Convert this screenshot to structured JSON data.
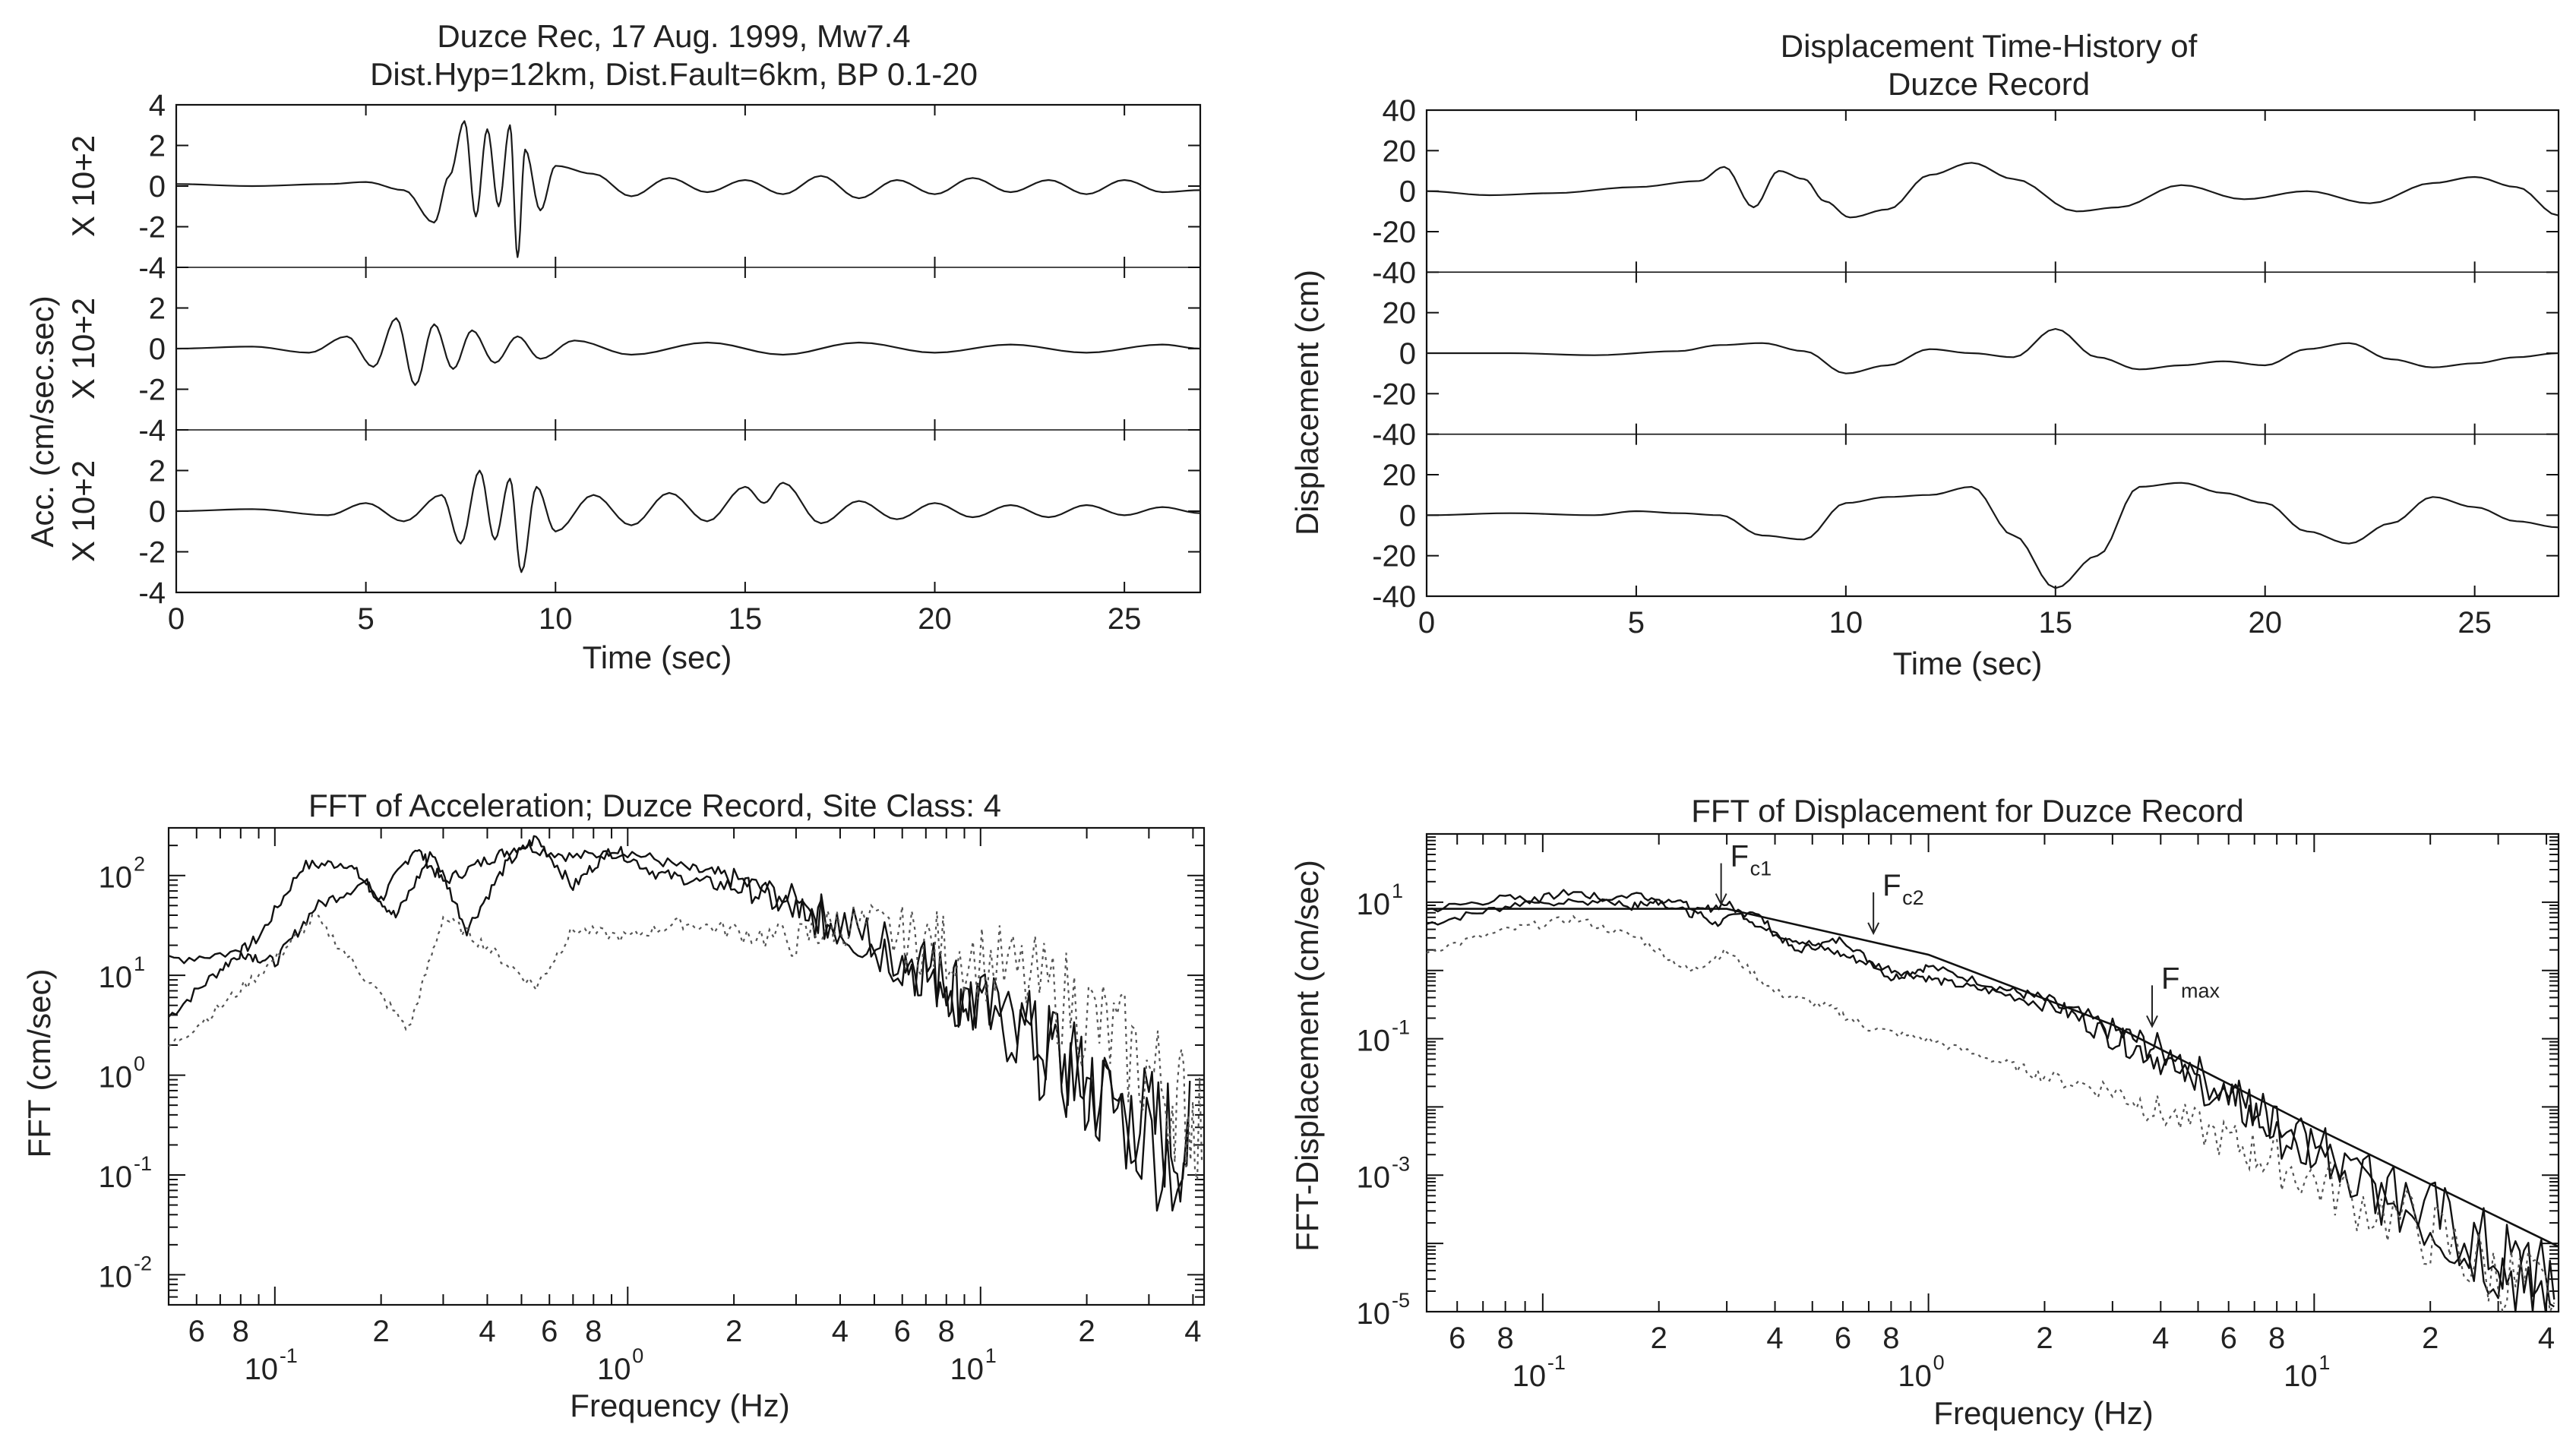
{
  "chart_data": [
    {
      "id": "acc",
      "type": "line",
      "title": [
        "Duzce Rec, 17 Aug. 1999, Mw7.4",
        "Dist.Hyp=12km, Dist.Fault=6km, BP 0.1-20"
      ],
      "xlabel": "Time (sec)",
      "ylabel": "Acc. (cm/sec.sec)",
      "channel_labels": [
        "X 10+2",
        "X 10+2",
        "X 10+2"
      ],
      "xlim": [
        0,
        27
      ],
      "xticks": [
        "0",
        "5",
        "10",
        "15",
        "20",
        "25"
      ],
      "xtick_values": [
        0,
        5,
        10,
        15,
        20,
        25
      ],
      "ylim": [
        -4,
        4
      ],
      "yticks": [
        "4",
        "2",
        "0",
        "-2",
        "-4"
      ],
      "channels": [
        {
          "label": "X 10+2",
          "x": [
            0,
            2,
            4,
            5,
            6,
            6.8,
            7.2,
            7.6,
            7.9,
            8.2,
            8.5,
            8.8,
            9.0,
            9.2,
            9.6,
            10,
            11,
            12,
            13,
            14,
            15,
            16,
            17,
            18,
            19,
            20,
            21,
            22,
            23,
            24,
            25,
            26,
            27
          ],
          "y": [
            0.1,
            0.0,
            0.1,
            0.2,
            -0.2,
            -1.8,
            0.5,
            3.2,
            -1.5,
            2.8,
            -1.0,
            3.0,
            -3.5,
            1.8,
            -1.2,
            1.0,
            0.6,
            -0.5,
            0.4,
            -0.3,
            0.3,
            -0.4,
            0.5,
            -0.6,
            0.3,
            -0.4,
            0.4,
            -0.3,
            0.3,
            -0.4,
            0.3,
            -0.3,
            -0.2
          ]
        },
        {
          "label": "X 10+2",
          "x": [
            0,
            2,
            3.5,
            4.5,
            5.2,
            5.8,
            6.3,
            6.8,
            7.3,
            7.8,
            8.4,
            9.0,
            9.6,
            10.5,
            12,
            14,
            16,
            18,
            20,
            22,
            24,
            26,
            27
          ],
          "y": [
            0.0,
            0.1,
            -0.2,
            0.6,
            -0.9,
            1.5,
            -1.8,
            1.2,
            -1.0,
            0.9,
            -0.7,
            0.6,
            -0.5,
            0.4,
            -0.3,
            0.3,
            -0.3,
            0.3,
            -0.2,
            0.2,
            -0.2,
            0.2,
            0.0
          ]
        },
        {
          "label": "X 10+2",
          "x": [
            0,
            2,
            4,
            5,
            6,
            7,
            7.5,
            8.0,
            8.4,
            8.8,
            9.1,
            9.5,
            10,
            11,
            12,
            13,
            14,
            15,
            15.5,
            16,
            17,
            18,
            19,
            20,
            21,
            22,
            23,
            24,
            25,
            26,
            27
          ],
          "y": [
            0.0,
            0.1,
            -0.2,
            0.4,
            -0.5,
            0.8,
            -1.6,
            2.0,
            -1.4,
            1.6,
            -3.0,
            1.2,
            -1.0,
            0.8,
            -0.7,
            0.9,
            -0.5,
            1.2,
            0.4,
            1.4,
            -0.6,
            0.5,
            -0.4,
            0.4,
            -0.3,
            0.3,
            -0.3,
            0.3,
            -0.2,
            0.2,
            -0.1
          ]
        }
      ]
    },
    {
      "id": "disp",
      "type": "line",
      "title": [
        "Displacement Time-History of",
        "Duzce Record"
      ],
      "xlabel": "Time (sec)",
      "ylabel": "Displacement (cm)",
      "xlim": [
        0,
        27
      ],
      "xticks": [
        "0",
        "5",
        "10",
        "15",
        "20",
        "25"
      ],
      "xtick_values": [
        0,
        5,
        10,
        15,
        20,
        25
      ],
      "ylim": [
        -40,
        40
      ],
      "yticks": [
        "40",
        "20",
        "0",
        "-20",
        "-40"
      ],
      "channels": [
        {
          "x": [
            0,
            1.5,
            3,
            5,
            6.5,
            7.1,
            7.8,
            8.4,
            9.0,
            9.5,
            10.1,
            11,
            12,
            13,
            14,
            15.5,
            16.5,
            18,
            19.5,
            21,
            22.5,
            24,
            25,
            26,
            27
          ],
          "y": [
            0,
            -2,
            -1,
            2,
            5,
            12,
            -8,
            10,
            6,
            -5,
            -13,
            -9,
            8,
            14,
            6,
            -10,
            -8,
            3,
            -4,
            0,
            -6,
            4,
            7,
            2,
            -12
          ]
        },
        {
          "x": [
            0,
            2,
            4,
            6,
            7,
            8,
            9,
            10,
            11,
            12,
            13,
            14,
            15,
            16,
            17,
            18,
            19,
            20,
            21,
            22,
            23,
            24,
            25,
            26,
            27
          ],
          "y": [
            0,
            0,
            -1,
            1,
            4,
            5,
            1,
            -10,
            -6,
            2,
            0,
            -2,
            12,
            -2,
            -8,
            -6,
            -4,
            -6,
            2,
            5,
            -3,
            -7,
            -5,
            -2,
            0
          ]
        },
        {
          "x": [
            0,
            2,
            4,
            5,
            6,
            7,
            8,
            9,
            10,
            11,
            12,
            13,
            14,
            15,
            16,
            17,
            18,
            19,
            20,
            21,
            22,
            23,
            24,
            25,
            26,
            27
          ],
          "y": [
            0,
            1,
            0,
            2,
            1,
            0,
            -10,
            -12,
            6,
            9,
            10,
            14,
            -10,
            -36,
            -20,
            14,
            16,
            11,
            6,
            -8,
            -14,
            -4,
            9,
            4,
            -3,
            -6
          ]
        }
      ]
    },
    {
      "id": "fft-acc",
      "type": "line",
      "scale": "log-log",
      "title": "FFT of Acceleration; Duzce Record, Site Class: 4",
      "xlabel": "Frequency (Hz)",
      "ylabel": "FFT (cm/sec)",
      "xlim": [
        0.05,
        43
      ],
      "ylim": [
        0.005,
        300
      ],
      "xtick_minor_labels": [
        {
          "v": 0.06,
          "t": "6"
        },
        {
          "v": 0.08,
          "t": "8"
        },
        {
          "v": 0.2,
          "t": "2"
        },
        {
          "v": 0.4,
          "t": "4"
        },
        {
          "v": 0.6,
          "t": "6"
        },
        {
          "v": 0.8,
          "t": "8"
        },
        {
          "v": 2,
          "t": "2"
        },
        {
          "v": 4,
          "t": "4"
        },
        {
          "v": 6,
          "t": "6"
        },
        {
          "v": 8,
          "t": "8"
        },
        {
          "v": 20,
          "t": "2"
        },
        {
          "v": 40,
          "t": "4"
        }
      ],
      "xtick_decades": [
        {
          "v": 0.1,
          "base": "10",
          "exp": "-1"
        },
        {
          "v": 1,
          "base": "10",
          "exp": "0"
        },
        {
          "v": 10,
          "base": "10",
          "exp": "1"
        }
      ],
      "ytick_decades": [
        {
          "v": 100,
          "base": "10",
          "exp": "2"
        },
        {
          "v": 10,
          "base": "10",
          "exp": "1"
        },
        {
          "v": 1,
          "base": "10",
          "exp": "0"
        },
        {
          "v": 0.1,
          "base": "10",
          "exp": "-1"
        },
        {
          "v": 0.01,
          "base": "10",
          "exp": "-2"
        }
      ],
      "series": [
        {
          "style": "solid",
          "x": [
            0.05,
            0.07,
            0.09,
            0.12,
            0.16,
            0.2,
            0.25,
            0.3,
            0.4,
            0.5,
            0.7,
            1.0,
            1.5,
            2,
            3,
            4,
            6,
            8,
            10,
            15,
            20,
            30,
            40
          ],
          "y": [
            4,
            12,
            25,
            130,
            140,
            60,
            200,
            90,
            150,
            210,
            160,
            180,
            120,
            100,
            60,
            40,
            20,
            12,
            6,
            3,
            1.2,
            0.5,
            0.3
          ]
        },
        {
          "style": "solid",
          "x": [
            0.05,
            0.08,
            0.1,
            0.13,
            0.18,
            0.22,
            0.28,
            0.35,
            0.45,
            0.55,
            0.7,
            0.9,
            1.2,
            1.6,
            2.2,
            3,
            4,
            6,
            8,
            12,
            18,
            25,
            40
          ],
          "y": [
            15,
            18,
            14,
            50,
            90,
            40,
            180,
            30,
            130,
            250,
            80,
            200,
            110,
            90,
            80,
            50,
            35,
            18,
            10,
            4,
            1.5,
            0.6,
            0.15
          ]
        },
        {
          "style": "dotted",
          "x": [
            0.05,
            0.07,
            0.1,
            0.13,
            0.18,
            0.24,
            0.3,
            0.4,
            0.55,
            0.7,
            1.0,
            1.4,
            2,
            3,
            4,
            6,
            8,
            12,
            18,
            25,
            35,
            43
          ],
          "y": [
            2,
            5,
            15,
            40,
            10,
            3,
            40,
            20,
            8,
            30,
            25,
            35,
            30,
            25,
            40,
            30,
            25,
            15,
            8,
            3,
            1,
            0.5
          ]
        }
      ]
    },
    {
      "id": "fft-disp",
      "type": "line",
      "scale": "log-log",
      "title": "FFT of Displacement for Duzce Record",
      "xlabel": "Frequency (Hz)",
      "ylabel": "FFT-Displacement (cm/sec)",
      "xlim": [
        0.05,
        43
      ],
      "ylim": [
        1e-05,
        100
      ],
      "xtick_minor_labels": [
        {
          "v": 0.06,
          "t": "6"
        },
        {
          "v": 0.08,
          "t": "8"
        },
        {
          "v": 0.2,
          "t": "2"
        },
        {
          "v": 0.4,
          "t": "4"
        },
        {
          "v": 0.6,
          "t": "6"
        },
        {
          "v": 0.8,
          "t": "8"
        },
        {
          "v": 2,
          "t": "2"
        },
        {
          "v": 4,
          "t": "4"
        },
        {
          "v": 6,
          "t": "6"
        },
        {
          "v": 8,
          "t": "8"
        },
        {
          "v": 20,
          "t": "2"
        },
        {
          "v": 40,
          "t": "4"
        }
      ],
      "xtick_decades": [
        {
          "v": 0.1,
          "base": "10",
          "exp": "-1"
        },
        {
          "v": 1,
          "base": "10",
          "exp": "0"
        },
        {
          "v": 10,
          "base": "10",
          "exp": "1"
        }
      ],
      "ytick_decades": [
        {
          "v": 10,
          "base": "10",
          "exp": "1"
        },
        {
          "v": 0.1,
          "base": "10",
          "exp": "-1"
        },
        {
          "v": 0.001,
          "base": "10",
          "exp": "-3"
        },
        {
          "v": 1e-05,
          "base": "10",
          "exp": "-5"
        }
      ],
      "annotations": [
        {
          "label": "F",
          "sub": "c1",
          "x": 0.29,
          "y": 8
        },
        {
          "label": "F",
          "sub": "c2",
          "x": 0.72,
          "y": 3
        },
        {
          "label": "F",
          "sub": "max",
          "x": 3.8,
          "y": 0.13
        }
      ],
      "model": {
        "x": [
          0.05,
          0.3,
          1,
          3,
          10,
          43
        ],
        "y": [
          8,
          8,
          1.7,
          0.16,
          0.005,
          9e-05
        ]
      },
      "series": [
        {
          "style": "solid",
          "x": [
            0.05,
            0.08,
            0.12,
            0.17,
            0.22,
            0.28,
            0.35,
            0.45,
            0.6,
            0.8,
            1.0,
            1.5,
            2,
            3,
            4,
            6,
            8,
            12,
            20,
            30,
            43
          ],
          "y": [
            5,
            9,
            15,
            9,
            12,
            5,
            8,
            2,
            3,
            0.8,
            1.2,
            0.6,
            0.4,
            0.15,
            0.08,
            0.02,
            0.008,
            0.002,
            0.0004,
            0.0001,
            3e-05
          ]
        },
        {
          "style": "solid",
          "x": [
            0.05,
            0.08,
            0.12,
            0.18,
            0.24,
            0.3,
            0.38,
            0.5,
            0.65,
            0.85,
            1.1,
            1.5,
            2.2,
            3,
            4,
            6,
            8,
            12,
            20,
            30,
            43
          ],
          "y": [
            8,
            12,
            10,
            14,
            7,
            10,
            4,
            2.5,
            1.5,
            1,
            0.7,
            0.5,
            0.3,
            0.12,
            0.06,
            0.015,
            0.006,
            0.0015,
            0.0003,
            8e-05,
            2e-05
          ]
        },
        {
          "style": "dotted",
          "x": [
            0.05,
            0.08,
            0.12,
            0.18,
            0.24,
            0.3,
            0.4,
            0.55,
            0.7,
            1.0,
            1.5,
            2,
            3,
            4,
            6,
            8,
            12,
            20,
            30,
            43
          ],
          "y": [
            2,
            4,
            6,
            3,
            1,
            2,
            0.5,
            0.3,
            0.15,
            0.1,
            0.05,
            0.03,
            0.02,
            0.01,
            0.004,
            0.002,
            0.0007,
            0.0002,
            5e-05,
            2e-05
          ]
        }
      ]
    }
  ]
}
